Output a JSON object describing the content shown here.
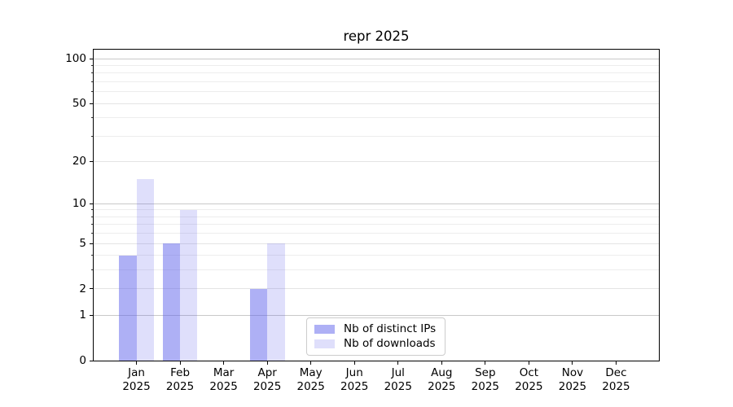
{
  "figure": {
    "title": "repr 2025"
  },
  "chart_data": {
    "type": "bar",
    "title": "repr 2025",
    "x_months": [
      "Jan",
      "Feb",
      "Mar",
      "Apr",
      "May",
      "Jun",
      "Jul",
      "Aug",
      "Sep",
      "Oct",
      "Nov",
      "Dec"
    ],
    "x_year": "2025",
    "series": [
      {
        "name": "Nb of distinct IPs",
        "color": "#5d61eb",
        "alpha": 0.5,
        "values": [
          4,
          5,
          0,
          2,
          0,
          0,
          0,
          0,
          0,
          0,
          0,
          0
        ]
      },
      {
        "name": "Nb of downloads",
        "color": "#5d61eb",
        "alpha": 0.2,
        "values": [
          15,
          9,
          0,
          5,
          0,
          0,
          0,
          0,
          0,
          0,
          0,
          0
        ]
      }
    ],
    "yaxis": {
      "scale": "log1p",
      "ylim": [
        0,
        115
      ],
      "major_ticks": [
        0,
        1,
        2,
        5,
        10,
        20,
        50,
        100
      ],
      "minor_ticks": [
        3,
        4,
        6,
        7,
        8,
        9,
        30,
        40,
        60,
        70,
        80,
        90
      ],
      "emphasized_gridlines": [
        1,
        10,
        100
      ],
      "grid": true
    },
    "xlabel": "",
    "ylabel": "",
    "legend": {
      "position": "inside lower-center",
      "entries": [
        "Nb of distinct IPs",
        "Nb of downloads"
      ]
    }
  }
}
